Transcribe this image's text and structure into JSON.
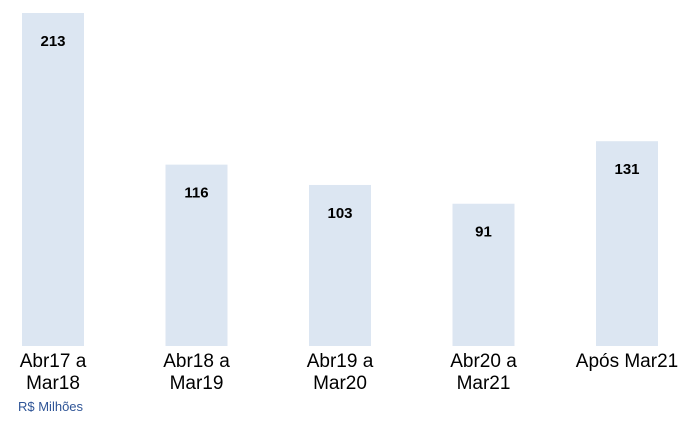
{
  "chart_data": {
    "type": "bar",
    "categories": [
      "Abr17 a\nMar18",
      "Abr18 a\nMar19",
      "Abr19 a\nMar20",
      "Abr20 a\nMar21",
      "Após Mar21"
    ],
    "values": [
      213,
      116,
      103,
      91,
      131
    ],
    "color": "#dce6f2",
    "note": "R$ Milhões"
  }
}
